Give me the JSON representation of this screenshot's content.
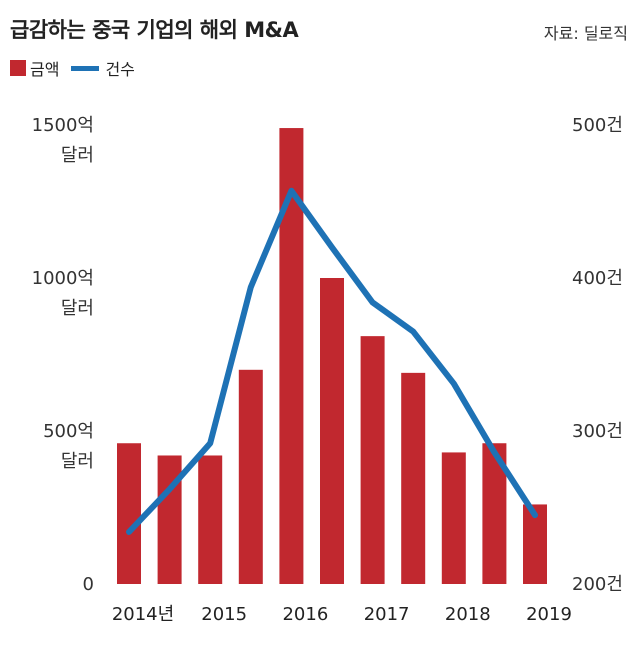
{
  "title": "급감하는 중국 기업의 해외 M&A",
  "source": "자료: 딜로직",
  "legend": {
    "bar_label": "금액",
    "line_label": "건수"
  },
  "colors": {
    "bar": "#c1282f",
    "line": "#1e72b5"
  },
  "chart_data": {
    "type": "bar",
    "categories": [
      "2014년",
      "",
      "2015",
      "",
      "2016",
      "",
      "2017",
      "",
      "2018",
      "",
      "2019"
    ],
    "x_tick_labels": [
      "2014년",
      "2015",
      "2016",
      "2017",
      "2018",
      "2019"
    ],
    "series": [
      {
        "name": "금액",
        "type": "bar",
        "axis": "left",
        "values": [
          460,
          420,
          420,
          700,
          1490,
          1000,
          810,
          690,
          430,
          460,
          260
        ]
      },
      {
        "name": "건수",
        "type": "line",
        "axis": "right",
        "points": [
          {
            "x": 0,
            "y": 234
          },
          {
            "x": 1,
            "y": 262
          },
          {
            "x": 2,
            "y": 292
          },
          {
            "x": 3,
            "y": 394
          },
          {
            "x": 4,
            "y": 457
          },
          {
            "x": 5,
            "y": 420
          },
          {
            "x": 6,
            "y": 384
          },
          {
            "x": 7,
            "y": 365
          },
          {
            "x": 8,
            "y": 331
          },
          {
            "x": 9,
            "y": 286
          },
          {
            "x": 10,
            "y": 245
          }
        ]
      }
    ],
    "left_axis": {
      "ylim": [
        0,
        1500
      ],
      "ticks": [
        {
          "value": 1500,
          "label": [
            "1500억",
            "달러"
          ]
        },
        {
          "value": 1000,
          "label": [
            "1000억",
            "달러"
          ]
        },
        {
          "value": 500,
          "label": [
            "500억",
            "달러"
          ]
        },
        {
          "value": 0,
          "label": [
            "0"
          ]
        }
      ]
    },
    "right_axis": {
      "ylim": [
        200,
        500
      ],
      "ticks": [
        {
          "value": 500,
          "label": "500건"
        },
        {
          "value": 400,
          "label": "400건"
        },
        {
          "value": 300,
          "label": "300건"
        },
        {
          "value": 200,
          "label": "200건"
        }
      ]
    },
    "grid": false
  }
}
